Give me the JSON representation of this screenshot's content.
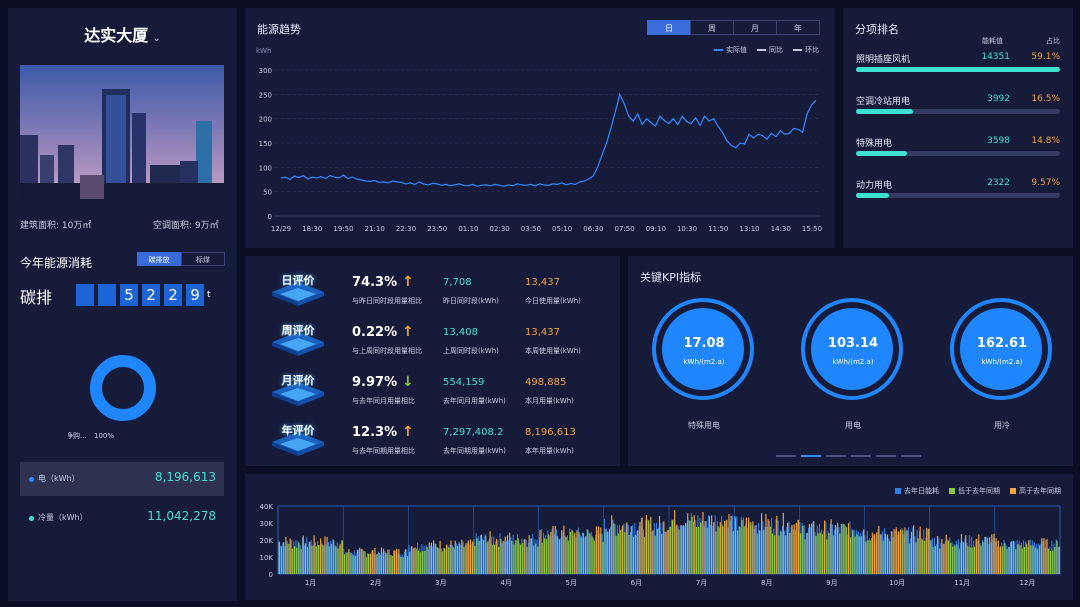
{
  "left": {
    "building": "达实大厦",
    "areas": [
      {
        "label": "建筑面积:",
        "value": "10万㎡"
      },
      {
        "label": "空调面积:",
        "value": "9万㎡"
      }
    ],
    "consume_title": "今年能源消耗",
    "toggle": [
      "碳排放",
      "标煤"
    ],
    "carbon_label": "碳排",
    "digits": [
      "",
      "",
      "5",
      "2",
      "2",
      "9"
    ],
    "unit": "t",
    "donut_label": "净购...",
    "donut_pct": "100%",
    "rows": [
      {
        "label": "电（kWh）",
        "value": "8,196,613",
        "color": "#2f8bff"
      },
      {
        "label": "冷量（kWh）",
        "value": "11,042,278",
        "color": "#3ee0d0"
      }
    ]
  },
  "trend": {
    "title": "能源趋势",
    "tabs": [
      "日",
      "周",
      "月",
      "年"
    ],
    "legend": [
      "实际值",
      "同比",
      "环比"
    ],
    "chart_data": {
      "type": "line",
      "ylabel": "kWh",
      "ylim": [
        0,
        300
      ],
      "yticks": [
        "0",
        "50",
        "100",
        "150",
        "200",
        "250",
        "300"
      ],
      "xticks": [
        "12/29",
        "18:30",
        "19:50",
        "21:10",
        "22:30",
        "23:50",
        "01:10",
        "02:30",
        "03:50",
        "05:10",
        "06:30",
        "07:50",
        "09:10",
        "10:30",
        "11:50",
        "13:10",
        "14:30",
        "15:50"
      ],
      "series": [
        {
          "name": "实际值",
          "values": [
            78,
            80,
            75,
            82,
            79,
            83,
            76,
            80,
            78,
            81,
            77,
            83,
            80,
            78,
            84,
            77,
            80,
            76,
            74,
            72,
            71,
            73,
            69,
            70,
            68,
            72,
            70,
            69,
            66,
            68,
            65,
            70,
            66,
            64,
            67,
            66,
            63,
            65,
            62,
            64,
            66,
            63,
            62,
            65,
            61,
            63,
            64,
            62,
            65,
            63,
            61,
            64,
            62,
            66,
            64,
            63,
            65,
            62,
            66,
            64,
            63,
            66,
            65,
            68,
            64,
            67,
            65,
            70,
            72,
            76,
            82,
            100,
            125,
            150,
            180,
            215,
            250,
            230,
            205,
            195,
            210,
            188,
            200,
            192,
            185,
            205,
            196,
            190,
            200,
            188,
            205,
            194,
            190,
            202,
            186,
            205,
            195,
            200,
            185,
            172,
            155,
            145,
            140,
            150,
            148,
            168,
            160,
            168,
            165,
            158,
            170,
            163,
            175,
            168,
            170,
            180,
            178,
            172,
            210,
            228,
            238
          ]
        }
      ]
    }
  },
  "rank": {
    "title": "分项排名",
    "col_value": "能耗值",
    "col_pct": "占比",
    "items": [
      {
        "name": "照明插座风机",
        "value": "14351",
        "pct": "59.1%",
        "ratio": 1.0
      },
      {
        "name": "空调冷站用电",
        "value": "3992",
        "pct": "16.5%",
        "ratio": 0.28
      },
      {
        "name": "特殊用电",
        "value": "3598",
        "pct": "14.8%",
        "ratio": 0.25
      },
      {
        "name": "动力用电",
        "value": "2322",
        "pct": "9.57%",
        "ratio": 0.16
      }
    ]
  },
  "eval": [
    {
      "badge": "日评价",
      "pct": "74.3%",
      "dir": "up",
      "cmp": "与昨日同时段用量相比",
      "n1": "7,708",
      "l1": "昨日同时段(kWh)",
      "n2": "13,437",
      "l2": "今日使用量(kWh)"
    },
    {
      "badge": "周评价",
      "pct": "0.22%",
      "dir": "up",
      "cmp": "与上周同时段用量相比",
      "n1": "13,408",
      "l1": "上周同时段(kWh)",
      "n2": "13,437",
      "l2": "本周使用量(kWh)"
    },
    {
      "badge": "月评价",
      "pct": "9.97%",
      "dir": "down",
      "cmp": "与去年同月用量相比",
      "n1": "554,159",
      "l1": "去年同月用量(kWh)",
      "n2": "498,885",
      "l2": "本月用量(kWh)"
    },
    {
      "badge": "年评价",
      "pct": "12.3%",
      "dir": "up",
      "cmp": "与去年同期用量相比",
      "n1": "7,297,408.2",
      "l1": "去年同期用量(kWh)",
      "n2": "8,196,613",
      "l2": "本年用量(kWh)"
    }
  ],
  "kpi": {
    "title": "关键KPI指标",
    "items": [
      {
        "value": "17.08",
        "unit": "kWh/(m2.a)",
        "label": "特殊用电"
      },
      {
        "value": "103.14",
        "unit": "kWh/(m2.a)",
        "label": "用电"
      },
      {
        "value": "162.61",
        "unit": "kWh/(m2.a)",
        "label": "用冷"
      }
    ]
  },
  "bars": {
    "legend": [
      {
        "name": "去年日能耗",
        "color": "#2f7fe0"
      },
      {
        "name": "低于去年同期",
        "color": "#8dc63f"
      },
      {
        "name": "高于去年同期",
        "color": "#f0a23b"
      }
    ],
    "chart_data": {
      "type": "bar",
      "ylim": [
        0,
        40000
      ],
      "yticks": [
        "0",
        "10K",
        "20K",
        "30K",
        "40K"
      ],
      "categories": [
        "1月",
        "2月",
        "3月",
        "4月",
        "5月",
        "6月",
        "7月",
        "8月",
        "9月",
        "10月",
        "11月",
        "12月"
      ],
      "monthly_level": [
        19000,
        13000,
        17000,
        21000,
        24000,
        29000,
        32000,
        30000,
        27000,
        24000,
        20000,
        18000
      ]
    }
  }
}
